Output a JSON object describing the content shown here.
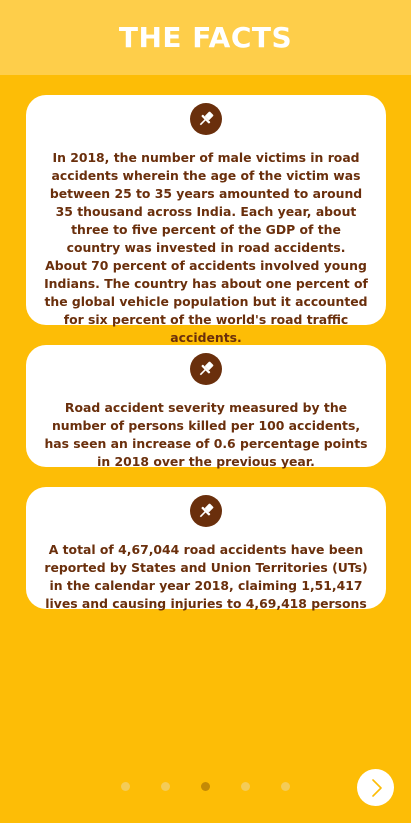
{
  "header": {
    "title": "THE FACTS"
  },
  "cards": [
    {
      "icon": "pushpin-icon",
      "text": "In 2018, the number of male victims in road accidents wherein the age of the victim was between 25 to 35 years amounted to around 35 thousand across India. Each year, about three to five percent of the GDP of the country was invested in road accidents. About 70 percent of accidents involved young Indians. The country has about one percent of the global vehicle population but it accounted for six percent of the world's road traffic accidents."
    },
    {
      "icon": "pushpin-icon",
      "text": "Road accident severity measured by the number of persons killed per 100 accidents, has seen an increase of 0.6 percentage points in 2018 over the previous year."
    },
    {
      "icon": "pushpin-icon",
      "text": "A total of 4,67,044 road accidents have been reported by States and Union Territories (UTs) in the calendar year 2018, claiming 1,51,417 lives and causing injuries to 4,69,418 persons"
    }
  ],
  "pager": {
    "total_pages": 5,
    "current_page": 3
  },
  "next_button": {
    "icon": "chevron-right-icon"
  },
  "colors": {
    "background": "#fdbd06",
    "header": "#fece4a",
    "text": "#6a2f0c",
    "dot_inactive": "#f4cc57",
    "dot_active": "#c48a05"
  }
}
